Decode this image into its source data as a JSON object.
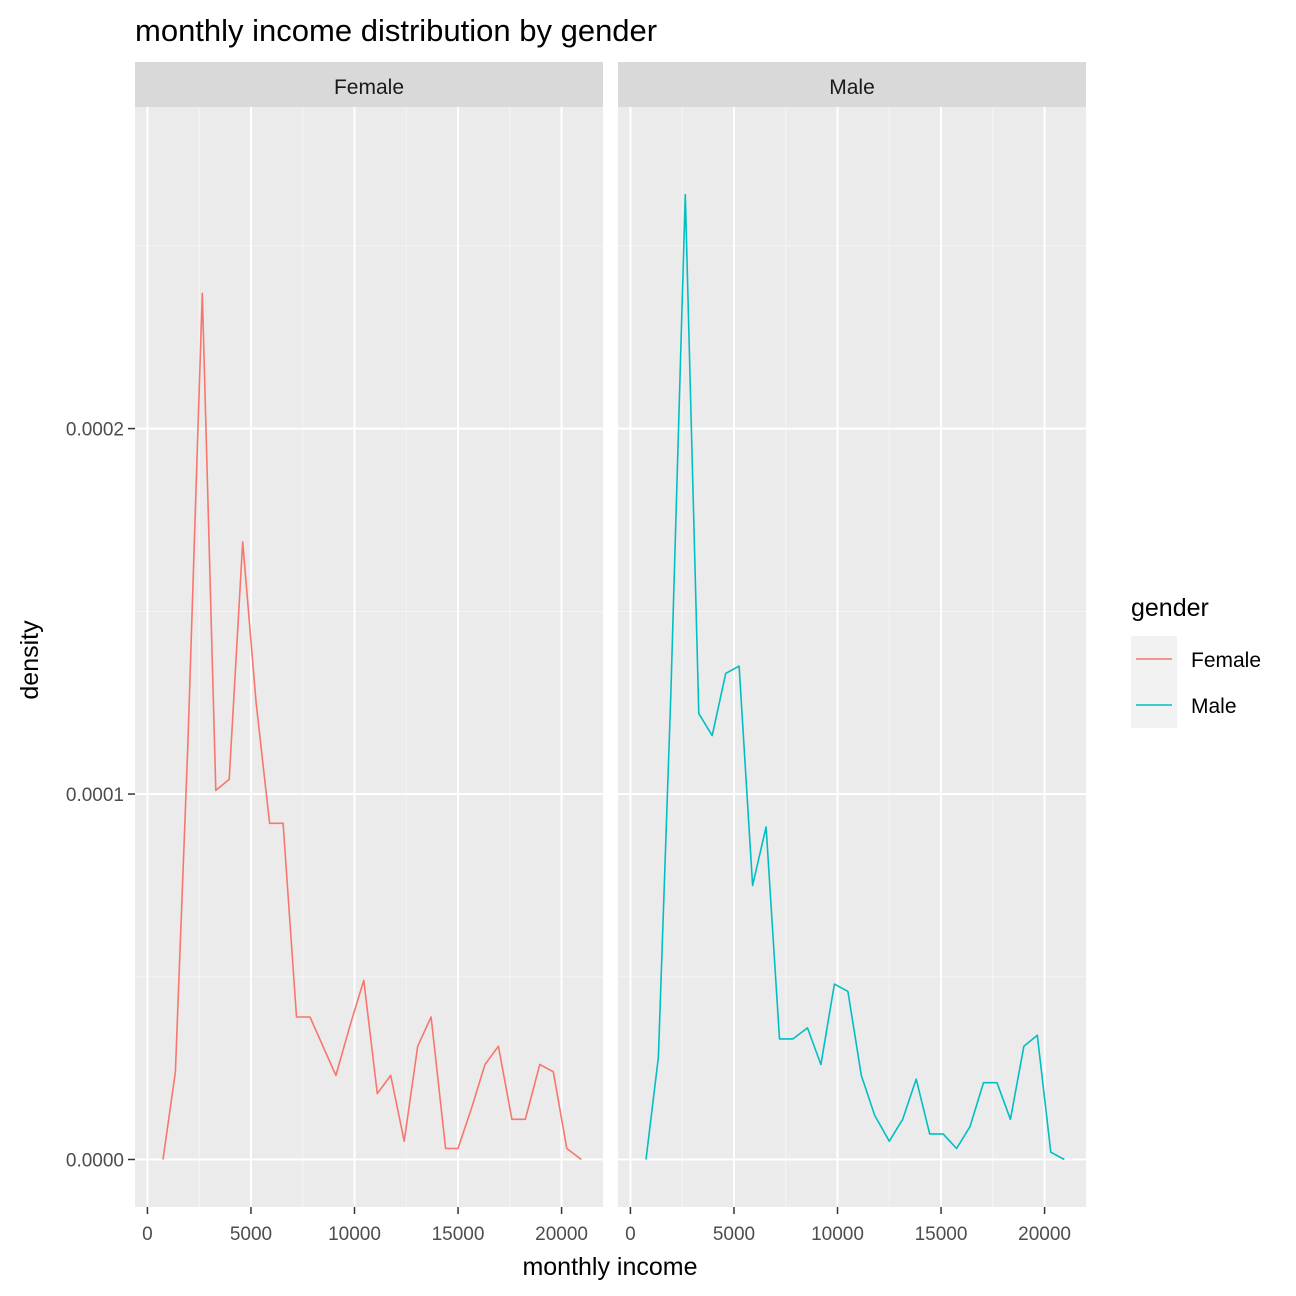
{
  "chart_data": {
    "type": "line",
    "title": "monthly income distribution by gender",
    "xlabel": "monthly income",
    "ylabel": "density",
    "xlim": [
      -600,
      22000
    ],
    "ylim": [
      -1.3e-05,
      0.000288
    ],
    "x_ticks": [
      0,
      5000,
      10000,
      15000,
      20000
    ],
    "x_tick_labels": [
      "0",
      "5000",
      "10000",
      "15000",
      "20000"
    ],
    "y_ticks": [
      0,
      0.0001,
      0.0002
    ],
    "y_tick_labels": [
      "0.0000",
      "0.0001",
      "0.0002"
    ],
    "grid": true,
    "legend": {
      "title": "gender",
      "position": "right"
    },
    "facets": [
      {
        "label": "Female",
        "series": {
          "name": "Female",
          "color": "#F8766D",
          "x": [
            750,
            1350,
            1950,
            2650,
            3300,
            3950,
            4600,
            5250,
            5900,
            6550,
            7200,
            7850,
            9100,
            9800,
            10450,
            11100,
            11750,
            12400,
            13050,
            13700,
            14400,
            15000,
            15650,
            16300,
            16950,
            17600,
            18250,
            18950,
            19600,
            20250,
            20950
          ],
          "y": [
            0.0,
            2.4e-05,
            0.000113,
            0.000237,
            0.000101,
            0.000104,
            0.000169,
            0.000125,
            9.2e-05,
            9.2e-05,
            3.9e-05,
            3.9e-05,
            2.3e-05,
            3.7e-05,
            4.9e-05,
            1.8e-05,
            2.3e-05,
            5e-06,
            3.1e-05,
            3.9e-05,
            3e-06,
            3e-06,
            1.4e-05,
            2.6e-05,
            3.1e-05,
            1.1e-05,
            1.1e-05,
            2.6e-05,
            2.4e-05,
            3e-06,
            0.0
          ]
        }
      },
      {
        "label": "Male",
        "series": {
          "name": "Male",
          "color": "#00BFC4",
          "x": [
            750,
            1350,
            1950,
            2650,
            3300,
            3950,
            4600,
            5250,
            5900,
            6550,
            7200,
            7850,
            8550,
            9200,
            9850,
            10500,
            11150,
            11800,
            12500,
            13150,
            13800,
            14450,
            15100,
            15750,
            16400,
            17050,
            17700,
            18350,
            19000,
            19650,
            20300,
            20950
          ],
          "y": [
            0.0,
            2.8e-05,
            0.000127,
            0.000264,
            0.000122,
            0.000116,
            0.000133,
            0.000135,
            7.5e-05,
            9.1e-05,
            3.3e-05,
            3.3e-05,
            3.6e-05,
            2.6e-05,
            4.8e-05,
            4.6e-05,
            2.3e-05,
            1.2e-05,
            5e-06,
            1.1e-05,
            2.2e-05,
            7e-06,
            7e-06,
            3e-06,
            9e-06,
            2.1e-05,
            2.1e-05,
            1.1e-05,
            3.1e-05,
            3.4e-05,
            2e-06,
            0.0
          ]
        }
      }
    ]
  }
}
